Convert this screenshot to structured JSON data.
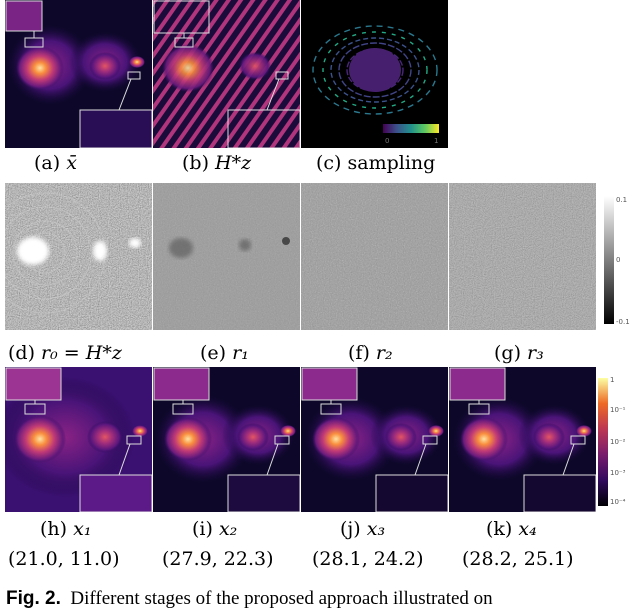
{
  "panels": [
    {
      "id": "a",
      "caption_letter": "(a)",
      "caption_math": "x̄",
      "caption_sub": ""
    },
    {
      "id": "b",
      "caption_letter": "(b)",
      "caption_math": "H*z",
      "caption_sub": ""
    },
    {
      "id": "c",
      "caption_letter": "(c)",
      "caption_math": "sampling",
      "caption_sub": ""
    },
    {
      "id": "d",
      "caption_letter": "(d)",
      "caption_math": "r₀ = H*z",
      "caption_sub": ""
    },
    {
      "id": "e",
      "caption_letter": "(e)",
      "caption_math": "r₁",
      "caption_sub": ""
    },
    {
      "id": "f",
      "caption_letter": "(f)",
      "caption_math": "r₂",
      "caption_sub": ""
    },
    {
      "id": "g",
      "caption_letter": "(g)",
      "caption_math": "r₃",
      "caption_sub": ""
    },
    {
      "id": "h",
      "caption_letter": "(h)",
      "caption_math": "x₁",
      "caption_sub": "(21.0, 11.0)"
    },
    {
      "id": "i",
      "caption_letter": "(i)",
      "caption_math": "x₂",
      "caption_sub": "(27.9, 22.3)"
    },
    {
      "id": "j",
      "caption_letter": "(j)",
      "caption_math": "x₃",
      "caption_sub": "(28.1, 24.2)"
    },
    {
      "id": "k",
      "caption_letter": "(k)",
      "caption_math": "x₄",
      "caption_sub": "(28.2, 25.1)"
    }
  ],
  "sampling_colorbar": {
    "min_label": "0",
    "max_label": "1"
  },
  "residual_colorbar": {
    "labels": [
      "0.1",
      "0",
      "-0.1"
    ]
  },
  "recon_colorbar": {
    "labels": [
      "1",
      "10⁻¹",
      "10⁻²",
      "10⁻³",
      "10⁻⁴"
    ]
  },
  "figure_caption": {
    "label": "Fig. 2.",
    "text": "Different stages of the proposed approach illustrated on"
  },
  "colors": {
    "inferno_dark": "#0d0829",
    "inferno_mid": "#b5367a",
    "inferno_bright": "#fcae4e",
    "viridis_low": "#440154",
    "viridis_high": "#fde725"
  }
}
